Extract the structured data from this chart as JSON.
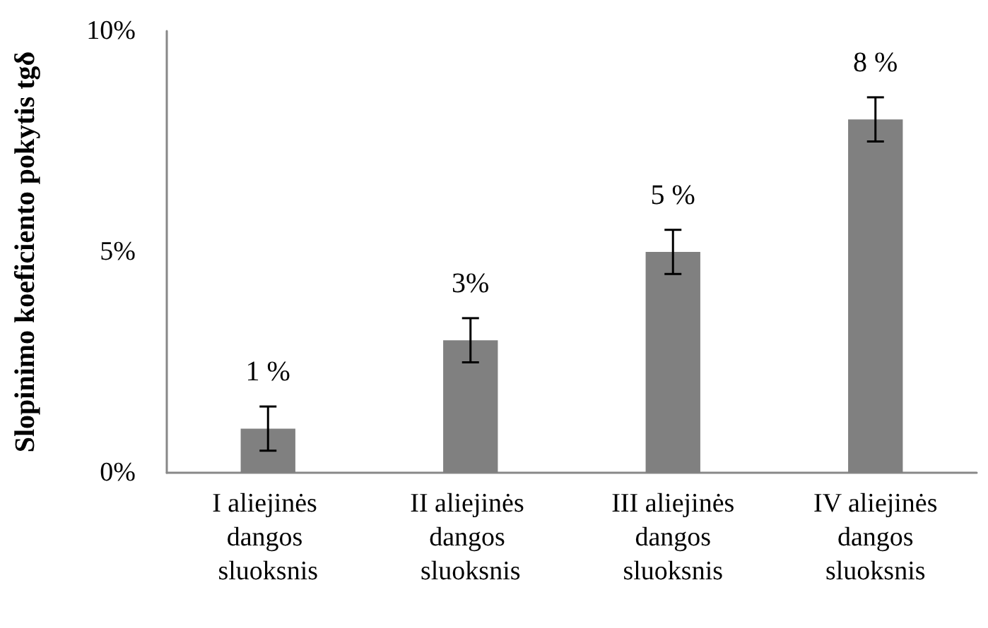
{
  "chart_data": {
    "type": "bar",
    "ylabel": "Slopinimo koeficiento pokytis tgδ",
    "categories": [
      "I aliejinės dangos sluoksnis",
      "II aliejinės dangos sluoksnis",
      "III aliejinės dangos sluoksnis",
      "IV aliejinės dangos sluoksnis"
    ],
    "values": [
      1,
      3,
      5,
      8
    ],
    "color": "#808080",
    "errors": [
      0.5,
      0.5,
      0.5,
      0.5
    ],
    "value_labels": [
      "1 %",
      "3%",
      "5 %",
      "8 %"
    ],
    "ylim": [
      0,
      10
    ],
    "yticks": [
      {
        "value": 0,
        "label": "0%"
      },
      {
        "value": 5,
        "label": "5%"
      },
      {
        "value": 10,
        "label": "10%"
      }
    ],
    "grid": false
  }
}
